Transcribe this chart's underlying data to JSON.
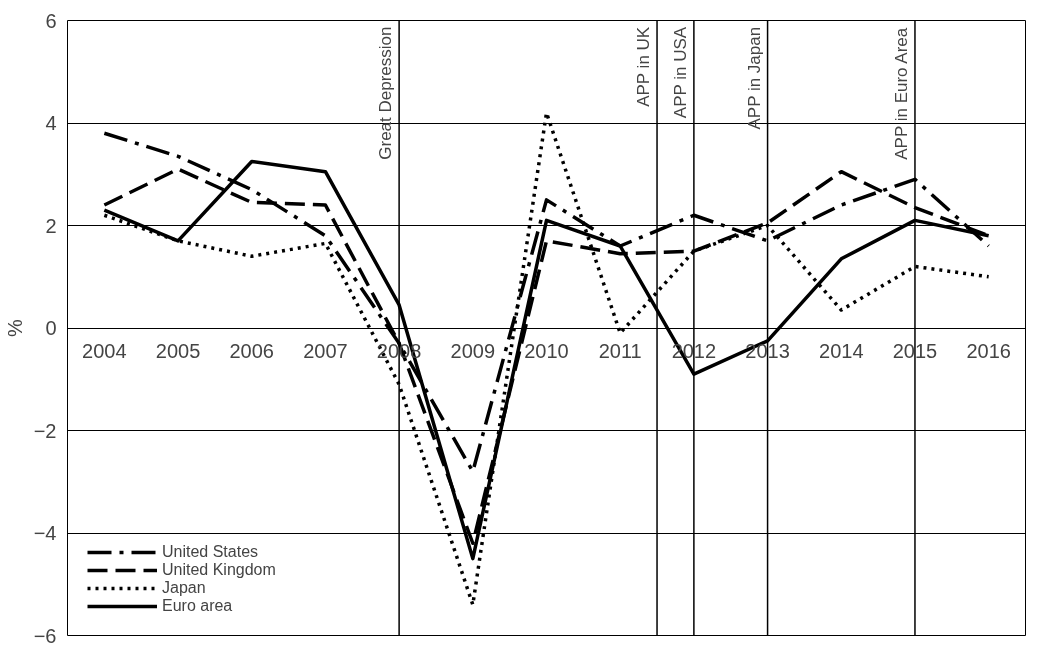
{
  "chart_data": {
    "type": "line",
    "ylabel": "%",
    "x": [
      2004,
      2005,
      2006,
      2007,
      2008,
      2009,
      2010,
      2011,
      2012,
      2013,
      2014,
      2015,
      2016
    ],
    "xlim": [
      2003.5,
      2016.5
    ],
    "xticks": [
      2004,
      2005,
      2006,
      2007,
      2008,
      2009,
      2010,
      2011,
      2012,
      2013,
      2014,
      2015,
      2016
    ],
    "ylim": [
      -6,
      6
    ],
    "yticks": [
      -6,
      -4,
      -2,
      0,
      2,
      4,
      6
    ],
    "grid": "y",
    "legend": "bottom left",
    "series": [
      {
        "name": "United States",
        "color": "#000000",
        "line_style": "dashdot",
        "values": [
          3.8,
          3.35,
          2.7,
          1.8,
          -0.3,
          -2.8,
          2.5,
          1.6,
          2.2,
          1.7,
          2.4,
          2.9,
          1.6
        ]
      },
      {
        "name": "United Kingdom",
        "color": "#000000",
        "line_style": "dashed",
        "values": [
          2.4,
          3.1,
          2.45,
          2.4,
          -0.3,
          -4.2,
          1.7,
          1.45,
          1.5,
          2.05,
          3.05,
          2.35,
          1.8
        ]
      },
      {
        "name": "Japan",
        "color": "#000000",
        "line_style": "dotted",
        "values": [
          2.2,
          1.7,
          1.4,
          1.65,
          -1.1,
          -5.4,
          4.2,
          -0.1,
          1.5,
          2.0,
          0.35,
          1.2,
          1.0
        ]
      },
      {
        "name": "Euro area",
        "color": "#000000",
        "line_style": "solid",
        "values": [
          2.3,
          1.7,
          3.25,
          3.05,
          0.45,
          -4.5,
          2.1,
          1.6,
          -0.9,
          -0.25,
          1.35,
          2.1,
          1.8
        ]
      }
    ],
    "ref_lines": [
      {
        "axis": "x",
        "value": 2008,
        "label": "Great Depression",
        "color": "#000000"
      },
      {
        "axis": "x",
        "value": 2011.5,
        "label": "APP in UK",
        "color": "#000000"
      },
      {
        "axis": "x",
        "value": 2012,
        "label": "APP in USA",
        "color": "#000000"
      },
      {
        "axis": "x",
        "value": 2013,
        "label": "APP in Japan",
        "color": "#000000"
      },
      {
        "axis": "x",
        "value": 2015,
        "label": "APP in Euro Area",
        "color": "#000000"
      }
    ]
  }
}
